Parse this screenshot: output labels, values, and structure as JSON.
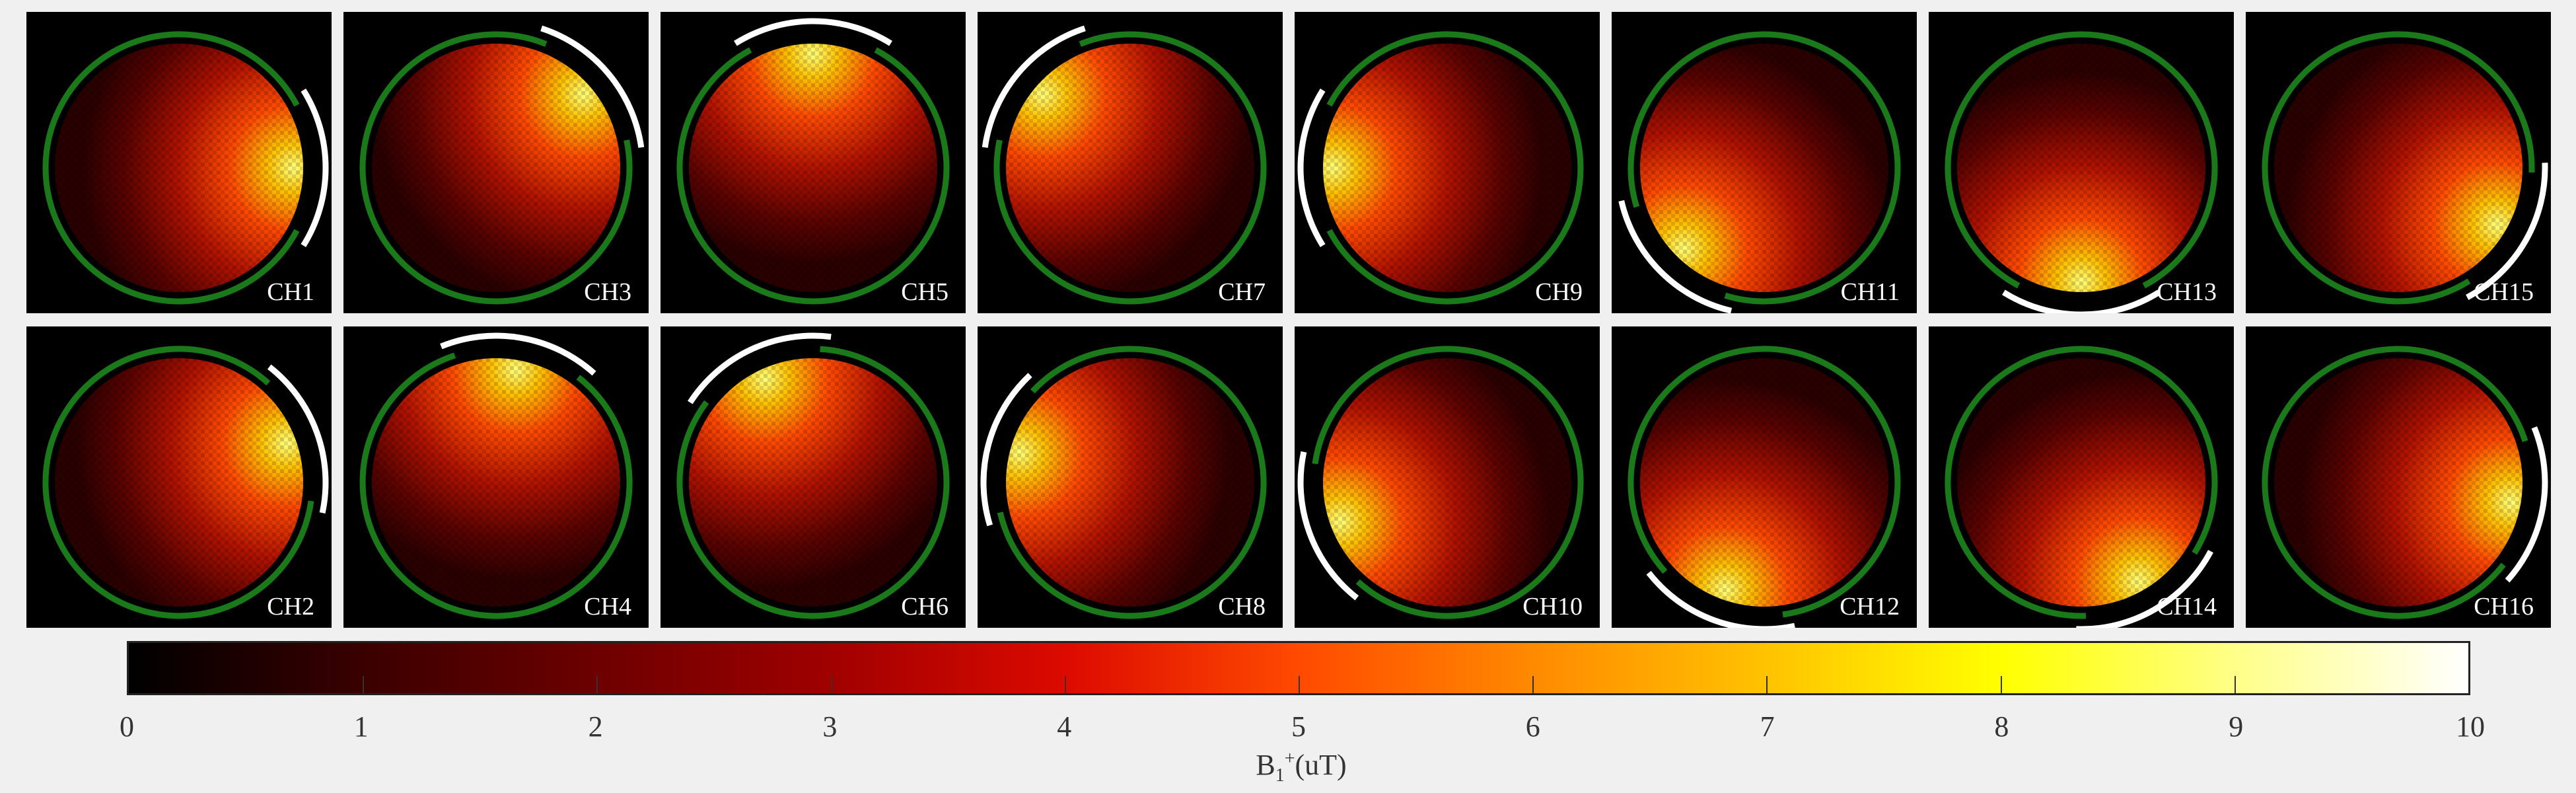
{
  "panels": [
    {
      "label": "CH1",
      "row": 0,
      "col": 0
    },
    {
      "label": "CH3",
      "row": 0,
      "col": 1
    },
    {
      "label": "CH5",
      "row": 0,
      "col": 2
    },
    {
      "label": "CH7",
      "row": 0,
      "col": 3
    },
    {
      "label": "CH9",
      "row": 0,
      "col": 4
    },
    {
      "label": "CH11",
      "row": 0,
      "col": 5
    },
    {
      "label": "CH13",
      "row": 0,
      "col": 6
    },
    {
      "label": "CH15",
      "row": 0,
      "col": 7
    },
    {
      "label": "CH2",
      "row": 1,
      "col": 0
    },
    {
      "label": "CH4",
      "row": 1,
      "col": 1
    },
    {
      "label": "CH6",
      "row": 1,
      "col": 2
    },
    {
      "label": "CH8",
      "row": 1,
      "col": 3
    },
    {
      "label": "CH10",
      "row": 1,
      "col": 4
    },
    {
      "label": "CH12",
      "row": 1,
      "col": 5
    },
    {
      "label": "CH14",
      "row": 1,
      "col": 6
    },
    {
      "label": "CH16",
      "row": 1,
      "col": 7
    }
  ],
  "colorbar": {
    "min": 0,
    "max": 10,
    "ticks": [
      "0",
      "1",
      "2",
      "3",
      "4",
      "5",
      "6",
      "7",
      "8",
      "9",
      "10"
    ],
    "label_main": "B",
    "label_sub": "1",
    "label_sup": "+",
    "label_unit": "(uT)"
  },
  "colors": {
    "background": "#f0f0f0",
    "ring": "#1a7a1a",
    "coil_arc": "#ffffff"
  }
}
